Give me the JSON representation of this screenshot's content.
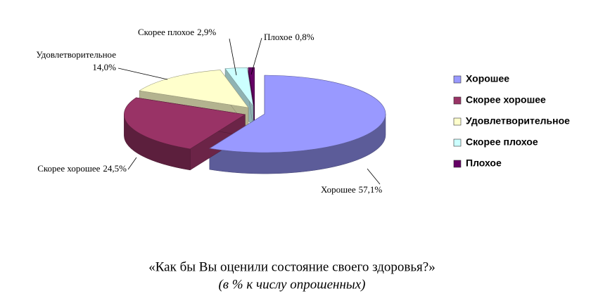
{
  "chart_data": {
    "type": "pie",
    "title": "«Как бы Вы оценили состояние своего здоровья?»",
    "subtitle": "(в % к числу опрошенных)",
    "categories": [
      "Хорошее",
      "Скорее хорошее",
      "Удовлетворительное",
      "Скорее плохое",
      "Плохое"
    ],
    "values": [
      57.1,
      24.5,
      14.0,
      2.9,
      0.8
    ],
    "value_labels": [
      "57,1%",
      "24,5%",
      "14,0%",
      "2,9%",
      "0,8%"
    ],
    "colors": [
      "#9999ff",
      "#993366",
      "#ffffcc",
      "#ccffff",
      "#660066"
    ],
    "legend": "right"
  }
}
